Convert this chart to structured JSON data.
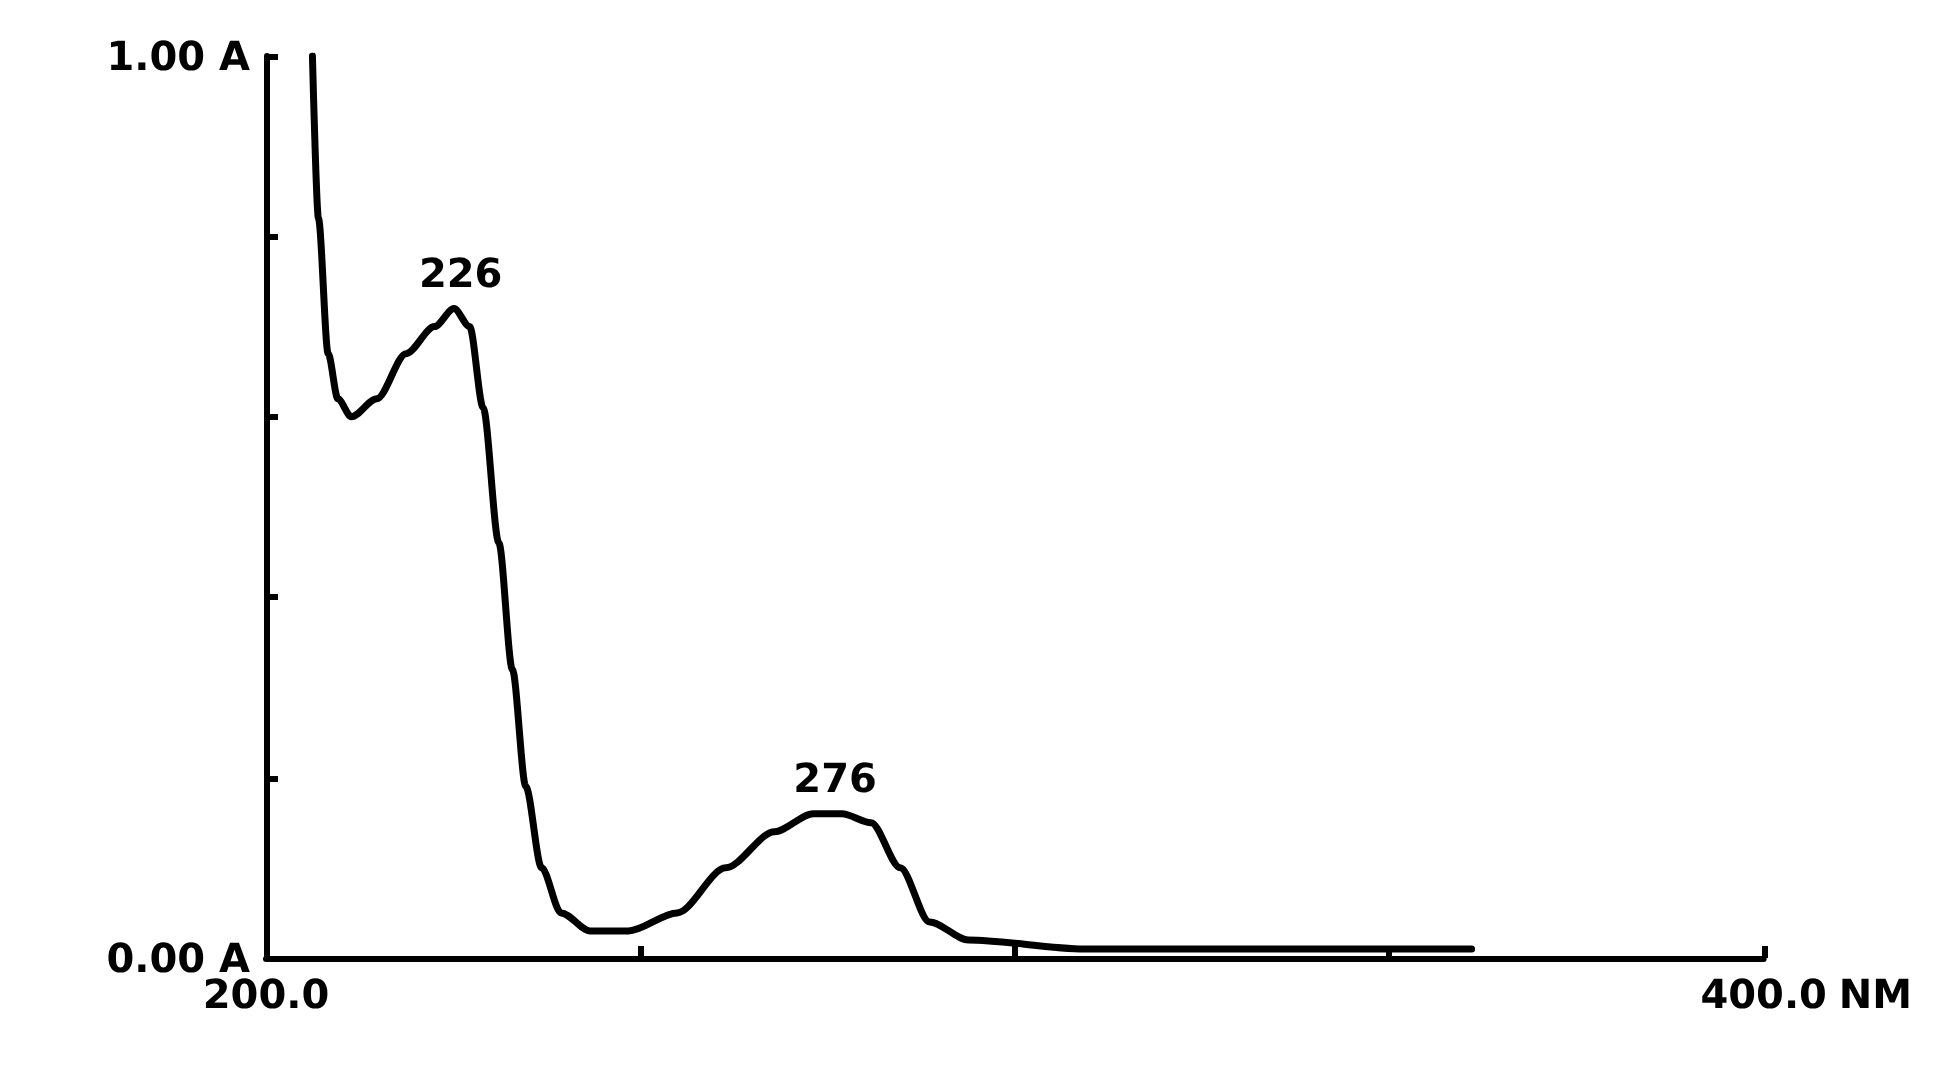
{
  "chart_data": {
    "type": "line",
    "xlabel": "NM",
    "x": [
      206.2,
      207,
      208.3,
      209.6,
      211.4,
      214.8,
      218.7,
      222.5,
      225.1,
      227.2,
      229,
      231.1,
      232.9,
      234.7,
      236.8,
      239.4,
      243.3,
      248.4,
      254.9,
      261.4,
      267.9,
      273.1,
      276.9,
      280.8,
      284.7,
      288.6,
      293.8,
      309.3,
      348.2,
      361
    ],
    "values": [
      1.0,
      0.82,
      0.67,
      0.62,
      0.6,
      0.62,
      0.67,
      0.7,
      0.72,
      0.7,
      0.61,
      0.46,
      0.32,
      0.19,
      0.1,
      0.05,
      0.03,
      0.03,
      0.05,
      0.1,
      0.14,
      0.16,
      0.16,
      0.15,
      0.1,
      0.04,
      0.02,
      0.01,
      0.01,
      0.01
    ],
    "color": "#000000",
    "xlim": [
      200,
      400
    ],
    "xticks": [
      {
        "value": 200,
        "label": "200.0"
      },
      {
        "value": 250,
        "label": null
      },
      {
        "value": 300,
        "label": null
      },
      {
        "value": 350,
        "label": null
      },
      {
        "value": 400,
        "label": "400.0"
      }
    ],
    "ylim": [
      0,
      1
    ],
    "yticks": [
      {
        "value": 0,
        "label": "0.00 A"
      },
      {
        "value": 0.2,
        "label": null
      },
      {
        "value": 0.4,
        "label": null
      },
      {
        "value": 0.6,
        "label": null
      },
      {
        "value": 0.8,
        "label": null
      },
      {
        "value": 1,
        "label": "1.00 A"
      }
    ],
    "annotations": [
      {
        "text": "226",
        "x": 226,
        "y": 0.72
      },
      {
        "text": "276",
        "x": 276,
        "y": 0.16
      }
    ],
    "grid": false,
    "marker": "none",
    "line_style": "solid"
  }
}
